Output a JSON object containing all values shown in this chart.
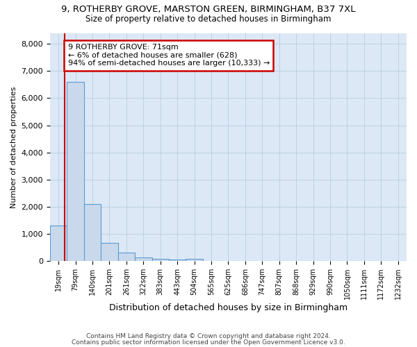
{
  "title_line1": "9, ROTHERBY GROVE, MARSTON GREEN, BIRMINGHAM, B37 7XL",
  "title_line2": "Size of property relative to detached houses in Birmingham",
  "xlabel": "Distribution of detached houses by size in Birmingham",
  "ylabel": "Number of detached properties",
  "bar_labels": [
    "19sqm",
    "79sqm",
    "140sqm",
    "201sqm",
    "261sqm",
    "322sqm",
    "383sqm",
    "443sqm",
    "504sqm",
    "565sqm",
    "625sqm",
    "686sqm",
    "747sqm",
    "807sqm",
    "868sqm",
    "929sqm",
    "990sqm",
    "1050sqm",
    "1111sqm",
    "1172sqm",
    "1232sqm"
  ],
  "bar_values": [
    1300,
    6600,
    2100,
    680,
    310,
    140,
    80,
    60,
    80,
    0,
    0,
    0,
    0,
    0,
    0,
    0,
    0,
    0,
    0,
    0,
    0
  ],
  "bar_color": "#c9d9eb",
  "bar_edge_color": "#5b9bd5",
  "annotation_title": "9 ROTHERBY GROVE: 71sqm",
  "annotation_line1": "← 6% of detached houses are smaller (628)",
  "annotation_line2": "94% of semi-detached houses are larger (10,333) →",
  "annotation_box_color": "#ffffff",
  "annotation_box_edge": "#cc0000",
  "property_line_color": "#cc0000",
  "ylim": [
    0,
    8400
  ],
  "yticks": [
    0,
    1000,
    2000,
    3000,
    4000,
    5000,
    6000,
    7000,
    8000
  ],
  "grid_color": "#b8cee0",
  "plot_bg_color": "#dce8f5",
  "fig_bg_color": "#ffffff",
  "footer1": "Contains HM Land Registry data © Crown copyright and database right 2024.",
  "footer2": "Contains public sector information licensed under the Open Government Licence v3.0."
}
